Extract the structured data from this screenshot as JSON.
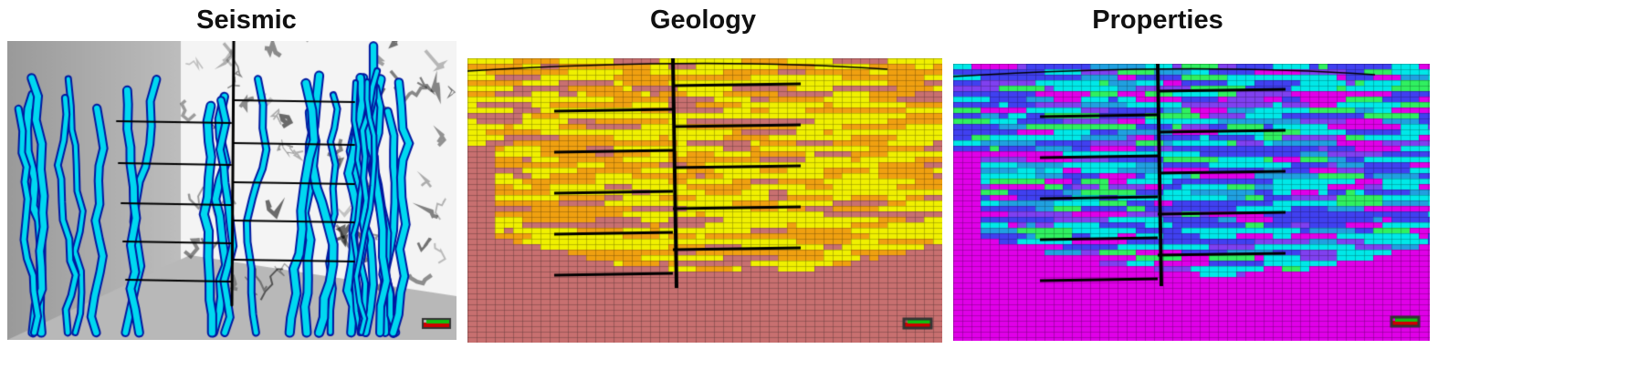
{
  "panels": [
    {
      "title": "Seismic",
      "colors": {
        "background_dark": "#8a8a8a",
        "background_light": "#f4f4f4",
        "feature_fill": "#00d8f0",
        "feature_edge": "#0018a0",
        "wells": "#000000"
      }
    },
    {
      "title": "Geology",
      "colors": {
        "yellow": "#f0f000",
        "orange": "#f0a010",
        "pink": "#c87070",
        "cyan": "#20e0e0",
        "wells": "#000000"
      }
    },
    {
      "title": "Properties",
      "colors": {
        "cyan": "#00e8e8",
        "blue": "#4040f0",
        "magenta": "#e000e8",
        "green": "#30f060",
        "wells": "#000000"
      }
    }
  ]
}
